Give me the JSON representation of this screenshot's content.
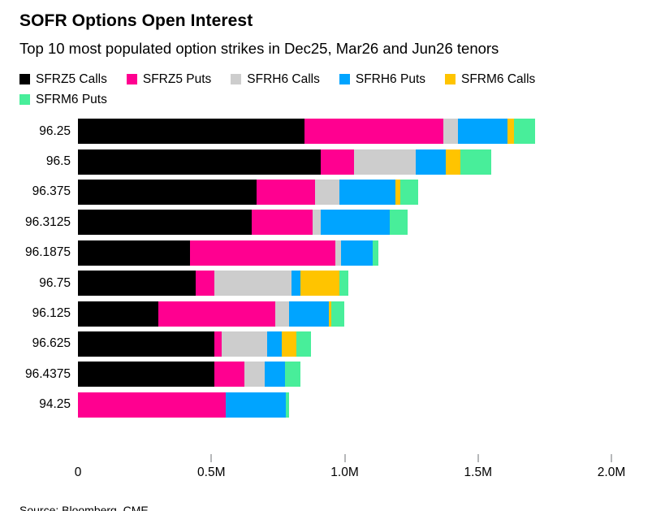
{
  "header": {
    "title": "SOFR Options Open Interest",
    "subtitle": "Top 10 most populated option strikes in Dec25, Mar26 and Jun26 tenors"
  },
  "legend": {
    "items": [
      {
        "label": "SFRZ5 Calls",
        "color": "#000000"
      },
      {
        "label": "SFRZ5 Puts",
        "color": "#FF0090"
      },
      {
        "label": "SFRH6 Calls",
        "color": "#CDCDCD"
      },
      {
        "label": "SFRH6 Puts",
        "color": "#00A4FF"
      },
      {
        "label": "SFRM6 Calls",
        "color": "#FFC400"
      },
      {
        "label": "SFRM6 Puts",
        "color": "#48EE9A"
      }
    ]
  },
  "chart_data": {
    "type": "bar",
    "orientation": "horizontal",
    "stacked": true,
    "title": "SOFR Options Open Interest",
    "subtitle": "Top 10 most populated option strikes in Dec25, Mar26 and Jun26 tenors",
    "unit": "M contracts",
    "categories": [
      "96.25",
      "96.5",
      "96.375",
      "96.3125",
      "96.1875",
      "96.75",
      "96.125",
      "96.625",
      "96.4375",
      "94.25"
    ],
    "series": [
      {
        "name": "SFRZ5 Calls",
        "color": "#000000",
        "values": [
          0.85,
          0.91,
          0.67,
          0.65,
          0.42,
          0.44,
          0.3,
          0.51,
          0.51,
          0
        ]
      },
      {
        "name": "SFRZ5 Puts",
        "color": "#FF0090",
        "values": [
          0.52,
          0.125,
          0.22,
          0.23,
          0.545,
          0.07,
          0.44,
          0.03,
          0.115,
          0.555
        ]
      },
      {
        "name": "SFRH6 Calls",
        "color": "#CDCDCD",
        "values": [
          0.055,
          0.23,
          0.09,
          0.03,
          0.02,
          0.29,
          0.05,
          0.17,
          0.075,
          0
        ]
      },
      {
        "name": "SFRH6 Puts",
        "color": "#00A4FF",
        "values": [
          0.185,
          0.115,
          0.21,
          0.26,
          0.12,
          0.035,
          0.15,
          0.055,
          0.075,
          0.225
        ]
      },
      {
        "name": "SFRM6 Calls",
        "color": "#FFC400",
        "values": [
          0.025,
          0.055,
          0.02,
          0,
          0,
          0.145,
          0.01,
          0.055,
          0,
          0
        ]
      },
      {
        "name": "SFRM6 Puts",
        "color": "#48EE9A",
        "values": [
          0.08,
          0.115,
          0.065,
          0.065,
          0.02,
          0.035,
          0.05,
          0.055,
          0.06,
          0.01
        ]
      }
    ],
    "xlabel": "",
    "ylabel": "",
    "xlim": [
      0,
      2.0
    ],
    "x_ticks": [
      {
        "label": "0",
        "value": 0
      },
      {
        "label": "0.5M",
        "value": 0.5
      },
      {
        "label": "1.0M",
        "value": 1.0
      },
      {
        "label": "1.5M",
        "value": 1.5
      },
      {
        "label": "2.0M",
        "value": 2.0
      }
    ],
    "legend_position": "top",
    "grid": false
  },
  "footer": {
    "source": "Source: Bloomberg, CME"
  }
}
